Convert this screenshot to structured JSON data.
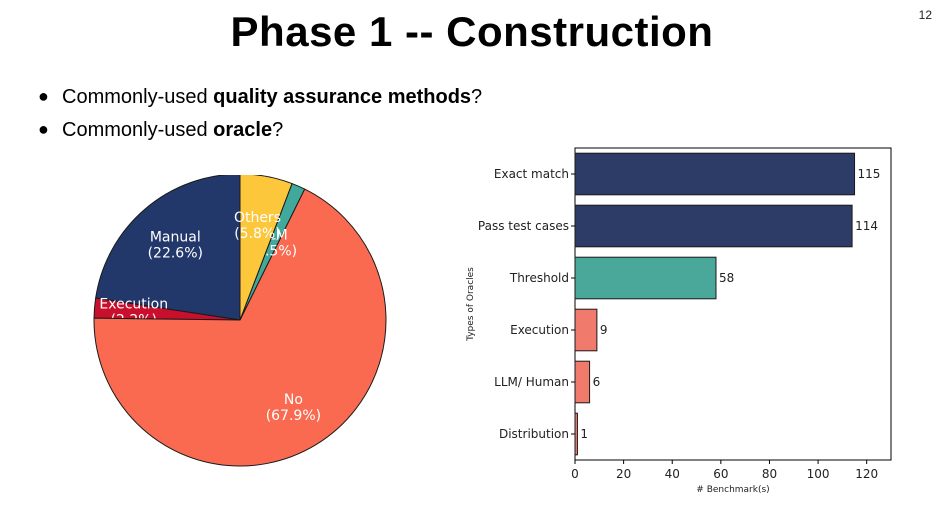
{
  "slide": {
    "number": "12",
    "title": "Phase 1 -- Construction",
    "bullets": [
      {
        "prefix": "Commonly-used ",
        "bold": "quality assurance methods",
        "suffix": "?"
      },
      {
        "prefix": "Commonly-used ",
        "bold": "oracle",
        "suffix": "?"
      }
    ]
  },
  "chart_data": [
    {
      "type": "pie",
      "title": "",
      "start_angle_deg": 90,
      "direction": "counterclockwise",
      "slices": [
        {
          "label": "Manual",
          "value": 22.6,
          "pct_label": "(22.6%)",
          "color": "#22376a"
        },
        {
          "label": "Execution",
          "value": 2.2,
          "pct_label": "(2.2%)",
          "color": "#c8102e"
        },
        {
          "label": "No",
          "value": 67.9,
          "pct_label": "(67.9%)",
          "color": "#fa6a50"
        },
        {
          "label": "LLM",
          "value": 1.5,
          "pct_label": "(1.5%)",
          "color": "#40a99c"
        },
        {
          "label": "Others",
          "value": 5.8,
          "pct_label": "(5.8%)",
          "color": "#fdc73c"
        }
      ]
    },
    {
      "type": "bar",
      "orientation": "horizontal",
      "title": "",
      "xlabel": "# Benchmark(s)",
      "ylabel": "Types of Oracles",
      "xlim": [
        0,
        130
      ],
      "xticks": [
        0,
        20,
        40,
        60,
        80,
        100,
        120
      ],
      "grid": false,
      "categories": [
        "Exact match",
        "Pass test cases",
        "Threshold",
        "Execution",
        "LLM/ Human",
        "Distribution"
      ],
      "values": [
        115,
        114,
        58,
        9,
        6,
        1
      ],
      "colors": [
        "#2c3c66",
        "#2c3c66",
        "#4aa89a",
        "#f07b6c",
        "#f07b6c",
        "#f07b6c"
      ]
    }
  ]
}
